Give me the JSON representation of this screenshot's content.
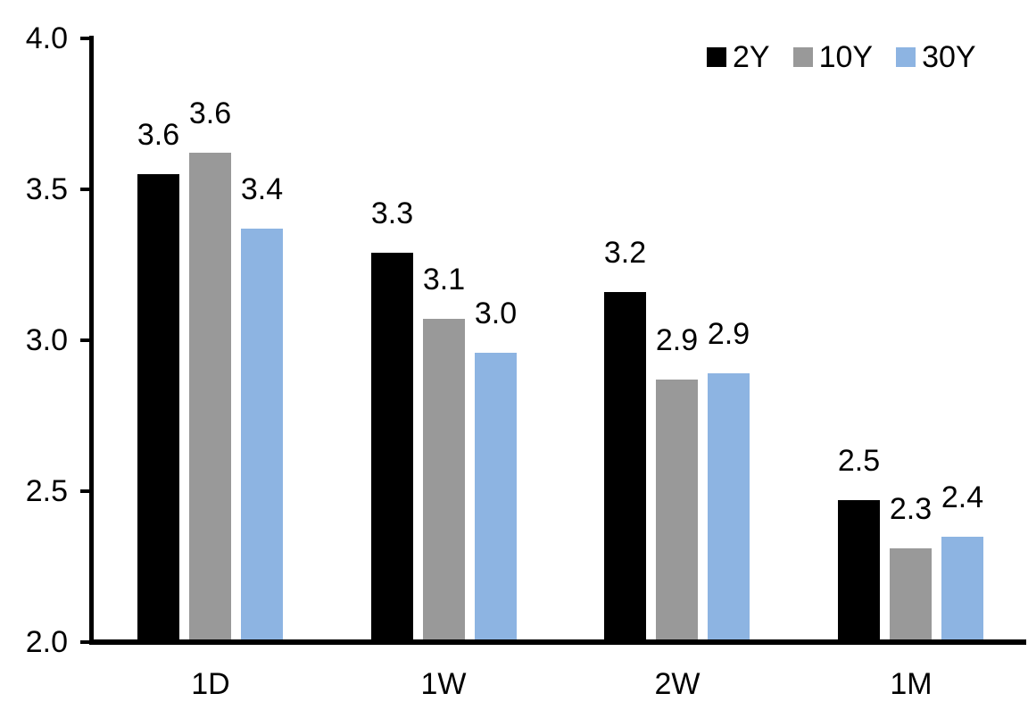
{
  "chart_data": {
    "type": "bar",
    "title": "",
    "categories": [
      "1D",
      "1W",
      "2W",
      "1M"
    ],
    "series": [
      {
        "name": "2Y",
        "color": "#000000",
        "values": [
          3.55,
          3.29,
          3.16,
          2.47
        ],
        "bar_labels": [
          "3.6",
          "3.3",
          "3.2",
          "2.5"
        ]
      },
      {
        "name": "10Y",
        "color": "#999999",
        "values": [
          3.62,
          3.07,
          2.87,
          2.31
        ],
        "bar_labels": [
          "3.6",
          "3.1",
          "2.9",
          "2.3"
        ]
      },
      {
        "name": "30Y",
        "color": "#8DB4E2",
        "values": [
          3.37,
          2.96,
          2.89,
          2.35
        ],
        "bar_labels": [
          "3.4",
          "3.0",
          "2.9",
          "2.4"
        ]
      }
    ],
    "y_axis": {
      "min": 2.0,
      "max": 4.0,
      "step": 0.5,
      "tick_labels": [
        "4.0",
        "3.5",
        "3.0",
        "2.5",
        "2.0"
      ]
    },
    "x_axis": {
      "tick_labels": [
        "1D",
        "1W",
        "2W",
        "1M"
      ]
    },
    "legend_position": "top-right",
    "grid": false,
    "background_color": "#FFFFFF",
    "axis_color": "#000000"
  }
}
